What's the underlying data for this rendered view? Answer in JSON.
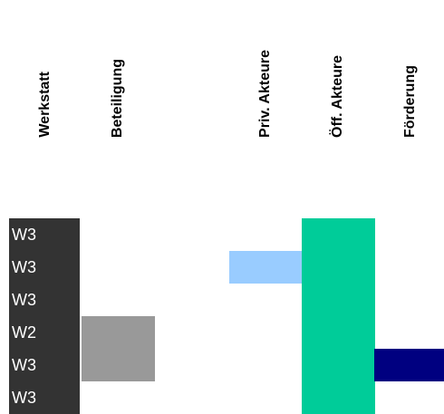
{
  "chart_data": {
    "type": "table",
    "columns": [
      "Werkstatt",
      "Beteiligung",
      "Priv. Akteure",
      "Öff. Akteure",
      "Förderung"
    ],
    "rows": [
      {
        "werkstatt": "W3",
        "cells": [
          0,
          0,
          0,
          1,
          0
        ]
      },
      {
        "werkstatt": "W3",
        "cells": [
          0,
          0,
          1,
          1,
          0
        ]
      },
      {
        "werkstatt": "W3",
        "cells": [
          0,
          0,
          0,
          1,
          0
        ]
      },
      {
        "werkstatt": "W2",
        "cells": [
          0,
          1,
          0,
          1,
          0
        ]
      },
      {
        "werkstatt": "W3",
        "cells": [
          0,
          1,
          0,
          1,
          1
        ]
      },
      {
        "werkstatt": "W3",
        "cells": [
          0,
          0,
          0,
          1,
          0
        ]
      }
    ],
    "colors": {
      "Werkstatt": "#333333",
      "Beteiligung": "#999999",
      "Priv. Akteure": "#99ccff",
      "Öff. Akteure": "#00cc99",
      "Förderung": "#000080"
    }
  }
}
